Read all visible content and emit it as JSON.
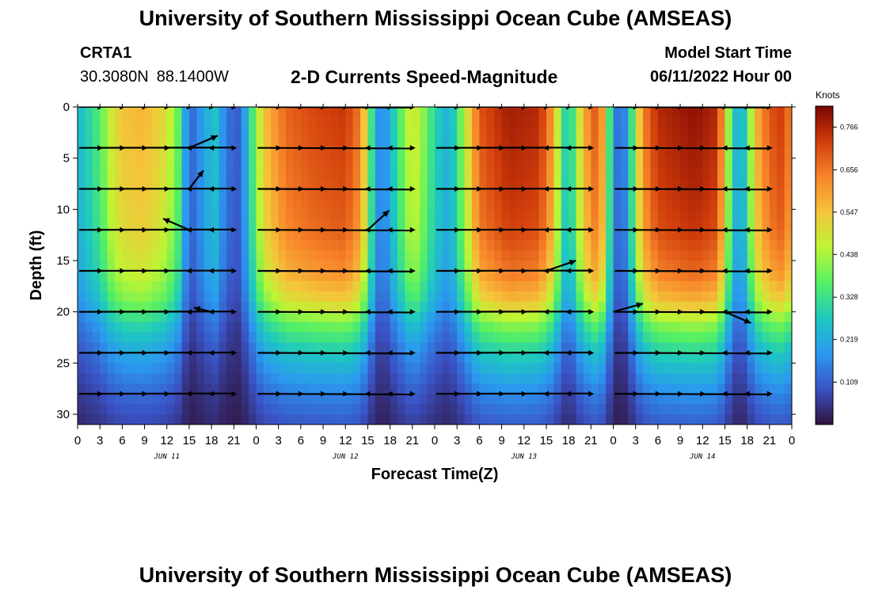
{
  "header": {
    "title": "University of Southern Mississippi Ocean Cube (AMSEAS)",
    "station": "CRTA1",
    "lat": "30.3080N",
    "lon": "88.1400W",
    "plot_title": "2-D Currents Speed-Magnitude",
    "model_start_label": "Model Start Time",
    "model_start_value": "06/11/2022 Hour 00"
  },
  "footer": {
    "title": "University of Southern Mississippi Ocean Cube (AMSEAS)"
  },
  "colors": {
    "palette": [
      "#30123b",
      "#3a52c4",
      "#2b98f0",
      "#1ec8c0",
      "#53f065",
      "#bdf534",
      "#f5c43a",
      "#f7852a",
      "#d13d0b",
      "#7a0403"
    ]
  },
  "chart_data": {
    "type": "heatmap",
    "xlabel": "Forecast Time(Z)",
    "ylabel": "Depth (ft)",
    "x_range_hours": [
      0,
      96
    ],
    "ylim": [
      0,
      31
    ],
    "x_tick_hours": [
      0,
      3,
      6,
      9,
      12,
      15,
      18,
      21,
      24,
      27,
      30,
      33,
      36,
      39,
      42,
      45,
      48,
      51,
      54,
      57,
      60,
      63,
      66,
      69,
      72,
      75,
      78,
      81,
      84,
      87,
      90,
      93,
      96
    ],
    "x_tick_labels": [
      "0",
      "3",
      "6",
      "9",
      "12",
      "15",
      "18",
      "21",
      "0",
      "3",
      "6",
      "9",
      "12",
      "15",
      "18",
      "21",
      "0",
      "3",
      "6",
      "9",
      "12",
      "15",
      "18",
      "21",
      "0",
      "3",
      "6",
      "9",
      "12",
      "15",
      "18",
      "21",
      "0"
    ],
    "day_labels": [
      {
        "hour": 12,
        "text": "JUN 11"
      },
      {
        "hour": 36,
        "text": "JUN 12"
      },
      {
        "hour": 60,
        "text": "JUN 13"
      },
      {
        "hour": 84,
        "text": "JUN 14"
      }
    ],
    "y_ticks": [
      0,
      5,
      10,
      15,
      20,
      25,
      30
    ],
    "y_tick_labels": [
      "0",
      "5",
      "10",
      "15",
      "20",
      "25",
      "30"
    ],
    "vector_depths": [
      0,
      4,
      8,
      12,
      16,
      20,
      24,
      28
    ],
    "colorbar": {
      "title": "Knots",
      "min": 0.0,
      "max": 0.82,
      "ticks": [
        0.109,
        0.219,
        0.328,
        0.438,
        0.547,
        0.656,
        0.766
      ],
      "tick_labels": [
        "0.109",
        "0.219",
        "0.328",
        "0.438",
        "0.547",
        "0.656",
        "0.766"
      ]
    },
    "surface_speed_profile": {
      "hours": [
        0,
        1.5,
        3,
        4.5,
        6,
        9,
        12,
        13.5,
        14.5,
        15,
        16,
        17,
        18.5,
        19.5,
        21,
        22,
        23,
        25,
        28,
        32,
        36,
        38,
        39,
        40,
        41,
        42,
        44,
        45,
        46,
        48,
        50,
        52,
        54,
        58,
        62,
        64,
        65,
        66,
        68,
        70,
        71,
        72,
        73,
        74,
        75,
        76,
        78,
        83,
        86,
        87,
        88,
        89,
        90,
        91,
        93,
        95,
        96
      ],
      "knots": [
        0.24,
        0.3,
        0.36,
        0.48,
        0.55,
        0.57,
        0.5,
        0.38,
        0.2,
        0.12,
        0.14,
        0.22,
        0.26,
        0.18,
        0.1,
        0.12,
        0.28,
        0.55,
        0.68,
        0.72,
        0.74,
        0.65,
        0.45,
        0.22,
        0.14,
        0.24,
        0.42,
        0.5,
        0.45,
        0.3,
        0.22,
        0.45,
        0.7,
        0.78,
        0.76,
        0.6,
        0.36,
        0.25,
        0.58,
        0.72,
        0.5,
        0.18,
        0.1,
        0.22,
        0.45,
        0.64,
        0.76,
        0.8,
        0.76,
        0.55,
        0.3,
        0.2,
        0.32,
        0.56,
        0.7,
        0.74,
        0.6
      ]
    },
    "depth_factor": {
      "depths": [
        0,
        4,
        8,
        12,
        16,
        19,
        21,
        24,
        28,
        31
      ],
      "factor": [
        1.0,
        0.98,
        0.96,
        0.93,
        0.85,
        0.72,
        0.55,
        0.38,
        0.22,
        0.14
      ]
    },
    "arrows_oblique": [
      {
        "hour": 15,
        "depth": 4,
        "dx_knots": 0.24,
        "dy_ft": -1.2
      },
      {
        "hour": 15,
        "depth": 8,
        "dx_knots": 0.12,
        "dy_ft": -1.8
      },
      {
        "hour": 15,
        "depth": 12,
        "dx_knots": -0.22,
        "dy_ft": -1.1
      },
      {
        "hour": 15,
        "depth": 20,
        "dx_knots": 0.0,
        "dy_ft": 0.0
      },
      {
        "hour": 18,
        "depth": 20,
        "dx_knots": -0.15,
        "dy_ft": -0.4
      },
      {
        "hour": 39,
        "depth": 12,
        "dx_knots": 0.18,
        "dy_ft": -1.9
      },
      {
        "hour": 63,
        "depth": 16,
        "dx_knots": 0.25,
        "dy_ft": -1.0
      },
      {
        "hour": 72,
        "depth": 20,
        "dx_knots": 0.25,
        "dy_ft": -0.8
      },
      {
        "hour": 87,
        "depth": 20,
        "dx_knots": 0.22,
        "dy_ft": 1.1
      }
    ]
  }
}
